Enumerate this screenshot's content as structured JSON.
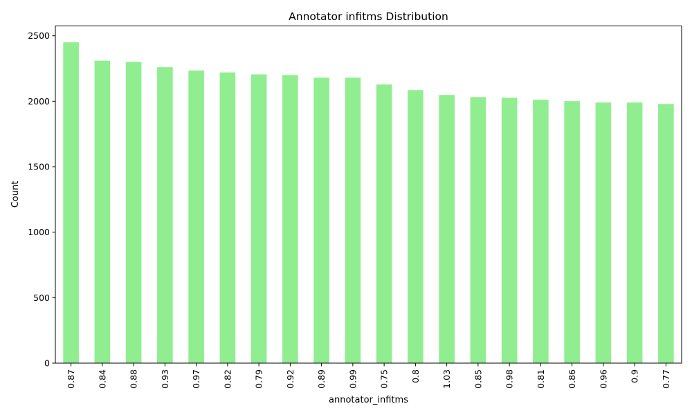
{
  "chart_data": {
    "type": "bar",
    "title": "Annotator infitms Distribution",
    "xlabel": "annotator_infitms",
    "ylabel": "Count",
    "categories": [
      "0.87",
      "0.84",
      "0.88",
      "0.93",
      "0.97",
      "0.82",
      "0.79",
      "0.92",
      "0.89",
      "0.99",
      "0.75",
      "0.8",
      "1.03",
      "0.85",
      "0.98",
      "0.81",
      "0.86",
      "0.96",
      "0.9",
      "0.77"
    ],
    "values": [
      2450,
      2310,
      2300,
      2260,
      2235,
      2220,
      2205,
      2200,
      2180,
      2180,
      2128,
      2085,
      2048,
      2032,
      2027,
      2011,
      2001,
      1990,
      1990,
      1979
    ],
    "ylim": [
      0,
      2575
    ],
    "yticks": [
      0,
      500,
      1000,
      1500,
      2000,
      2500
    ],
    "ytick_labels": [
      "0",
      "500",
      "1000",
      "1500",
      "2000",
      "2500"
    ],
    "bar_color": "#90ee90",
    "grid": false,
    "legend": "none"
  }
}
